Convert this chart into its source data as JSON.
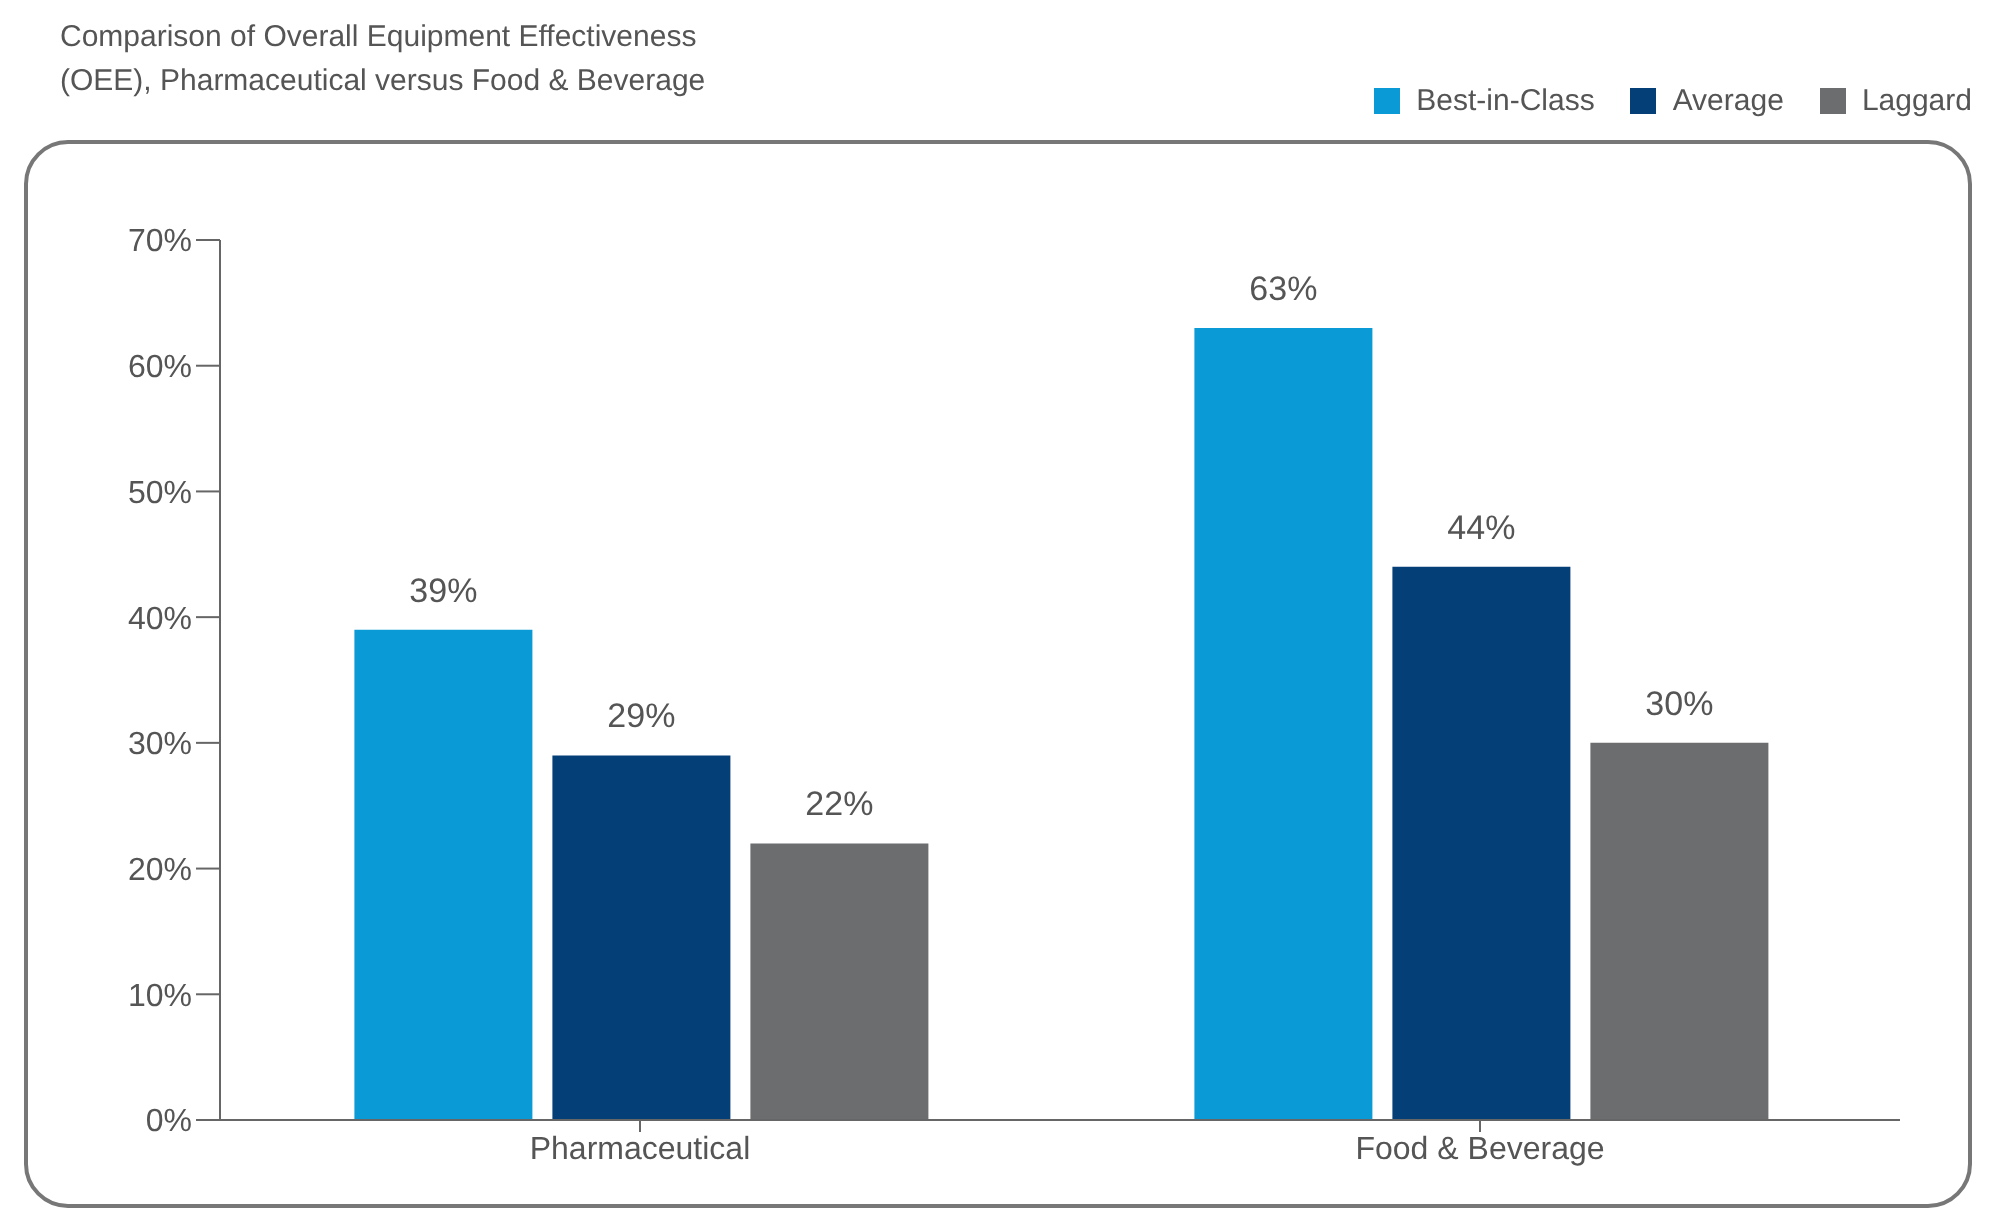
{
  "chart_data": {
    "type": "bar",
    "title": "Comparison of Overall Equipment Effectiveness (OEE), Pharmaceutical versus Food & Beverage",
    "categories": [
      "Pharmaceutical",
      "Food & Beverage"
    ],
    "series": [
      {
        "name": "Best-in-Class",
        "color": "#0a9ad6",
        "values": [
          39,
          63
        ],
        "value_labels": [
          "39%",
          "63%"
        ]
      },
      {
        "name": "Average",
        "color": "#053f78",
        "values": [
          29,
          44
        ],
        "value_labels": [
          "29%",
          "44%"
        ]
      },
      {
        "name": "Laggard",
        "color": "#6b6d6e",
        "values": [
          22,
          30
        ],
        "value_labels": [
          "22%",
          "30%"
        ]
      }
    ],
    "ylim": [
      0,
      70
    ],
    "yticks": [
      {
        "value": 0,
        "label": "0%"
      },
      {
        "value": 10,
        "label": "10%"
      },
      {
        "value": 20,
        "label": "20%"
      },
      {
        "value": 30,
        "label": "30%"
      },
      {
        "value": 40,
        "label": "40%"
      },
      {
        "value": 50,
        "label": "50%"
      },
      {
        "value": 60,
        "label": "60%"
      },
      {
        "value": 70,
        "label": "70%"
      }
    ],
    "grid": false,
    "legend": "top right"
  }
}
